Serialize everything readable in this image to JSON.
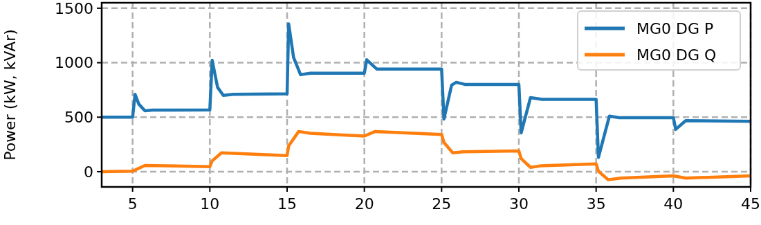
{
  "chart_data": {
    "type": "line",
    "ylabel": "Power (kW, kVAr)",
    "xlim": [
      3,
      45
    ],
    "ylim": [
      -140,
      1550
    ],
    "xticks": [
      5,
      10,
      15,
      20,
      25,
      30,
      35,
      40,
      45
    ],
    "yticks": [
      0,
      500,
      1000,
      1500
    ],
    "grid": true,
    "legend": "top right",
    "line_style": "solid",
    "series": [
      {
        "name": "MG0 DG P",
        "color": "#1f77b4",
        "x": [
          3,
          5,
          5.16,
          5.4,
          5.8,
          6.3,
          10,
          10.15,
          10.5,
          10.87,
          11.5,
          15,
          15.1,
          15.42,
          15.87,
          16.5,
          20,
          20.15,
          20.8,
          25,
          25.15,
          25.65,
          25.95,
          26.5,
          30,
          30.15,
          30.75,
          31.5,
          35,
          35.15,
          35.86,
          36.5,
          40,
          40.15,
          40.8,
          45
        ],
        "values": [
          500,
          500,
          710,
          620,
          559,
          565,
          567,
          1022,
          774,
          700,
          710,
          715,
          1357,
          1048,
          890,
          904,
          904,
          1027,
          942,
          942,
          483,
          795,
          820,
          801,
          801,
          356,
          679,
          664,
          664,
          131,
          510,
          495,
          495,
          388,
          468,
          462
        ]
      },
      {
        "name": "MG0 DG Q",
        "color": "#ff7f0e",
        "x": [
          3,
          5,
          5.8,
          10,
          10.15,
          10.75,
          15,
          15.1,
          15.75,
          16.5,
          20,
          20.7,
          25,
          25.15,
          25.72,
          26.4,
          30,
          30.15,
          30.75,
          31.4,
          35,
          35.15,
          35.78,
          36.6,
          40,
          40.8,
          45
        ],
        "values": [
          0,
          4,
          57,
          46,
          99,
          173,
          148,
          236,
          369,
          352,
          327,
          369,
          342,
          268,
          173,
          183,
          190,
          120,
          40,
          53,
          72,
          4,
          -74,
          -59,
          -38,
          -59,
          -38
        ]
      }
    ]
  }
}
